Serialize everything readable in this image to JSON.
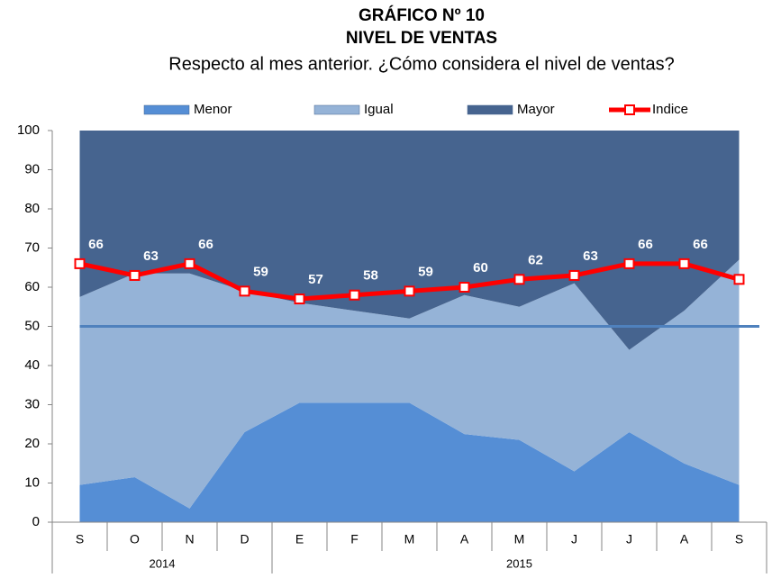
{
  "chart_data": {
    "type": "area",
    "title": "GRÁFICO Nº 10",
    "subtitle": "NIVEL DE VENTAS",
    "question": "Respecto al mes anterior. ¿Cómo considera el nivel de ventas?",
    "categories": [
      "S",
      "O",
      "N",
      "D",
      "E",
      "F",
      "M",
      "A",
      "M",
      "J",
      "J",
      "A",
      "S"
    ],
    "x_groups": [
      {
        "label": "2014",
        "count": 4
      },
      {
        "label": "2015",
        "count": 9
      }
    ],
    "series": [
      {
        "name": "Menor",
        "type": "area",
        "color": "#558ed5",
        "values": [
          9.5,
          11.5,
          3.5,
          23,
          30.5,
          30.5,
          30.5,
          22.5,
          21,
          13,
          23,
          15,
          9.5
        ]
      },
      {
        "name": "Igual",
        "type": "area",
        "color": "#95b3d7",
        "values": [
          48,
          52,
          60,
          36,
          25.5,
          23.5,
          21.5,
          35.5,
          34,
          48,
          21,
          39,
          57.5
        ]
      },
      {
        "name": "Mayor",
        "type": "area",
        "color": "#46648f",
        "values": [
          42.5,
          36.5,
          36.5,
          41,
          44,
          46,
          48,
          42,
          45,
          39,
          56,
          46,
          33
        ]
      },
      {
        "name": "Indice",
        "type": "line",
        "color": "#ff0000",
        "values": [
          66,
          63,
          66,
          59,
          57,
          58,
          59,
          60,
          62,
          63,
          66,
          66,
          62
        ]
      }
    ],
    "reference_line": {
      "value": 50,
      "color": "#4f81bd"
    },
    "ylim": [
      0,
      100
    ],
    "yticks": [
      0,
      10,
      20,
      30,
      40,
      50,
      60,
      70,
      80,
      90,
      100
    ],
    "legend": "top"
  }
}
